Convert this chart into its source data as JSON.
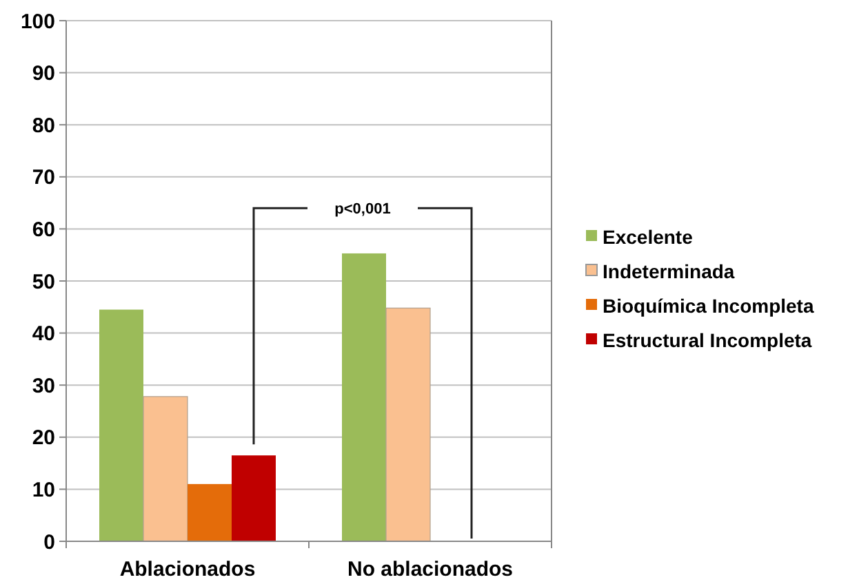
{
  "chart_data": {
    "type": "bar",
    "categories": [
      "Ablacionados",
      "No ablacionados"
    ],
    "series": [
      {
        "name": "Excelente",
        "color": "#9bbb59",
        "values": [
          44.5,
          55.3
        ]
      },
      {
        "name": "Indeterminada",
        "color": "#fac090",
        "values": [
          27.8,
          44.8
        ]
      },
      {
        "name": "Bioquímica Incompleta",
        "color": "#e46c0a",
        "values": [
          11,
          0
        ]
      },
      {
        "name": "Estructural Incompleta",
        "color": "#c00000",
        "values": [
          16.5,
          0
        ]
      }
    ],
    "ylim": [
      0,
      100
    ],
    "yticks": [
      0,
      10,
      20,
      30,
      40,
      50,
      60,
      70,
      80,
      90,
      100
    ],
    "grid": "y",
    "legend": "right",
    "annotations": [
      "p<0,001"
    ]
  }
}
